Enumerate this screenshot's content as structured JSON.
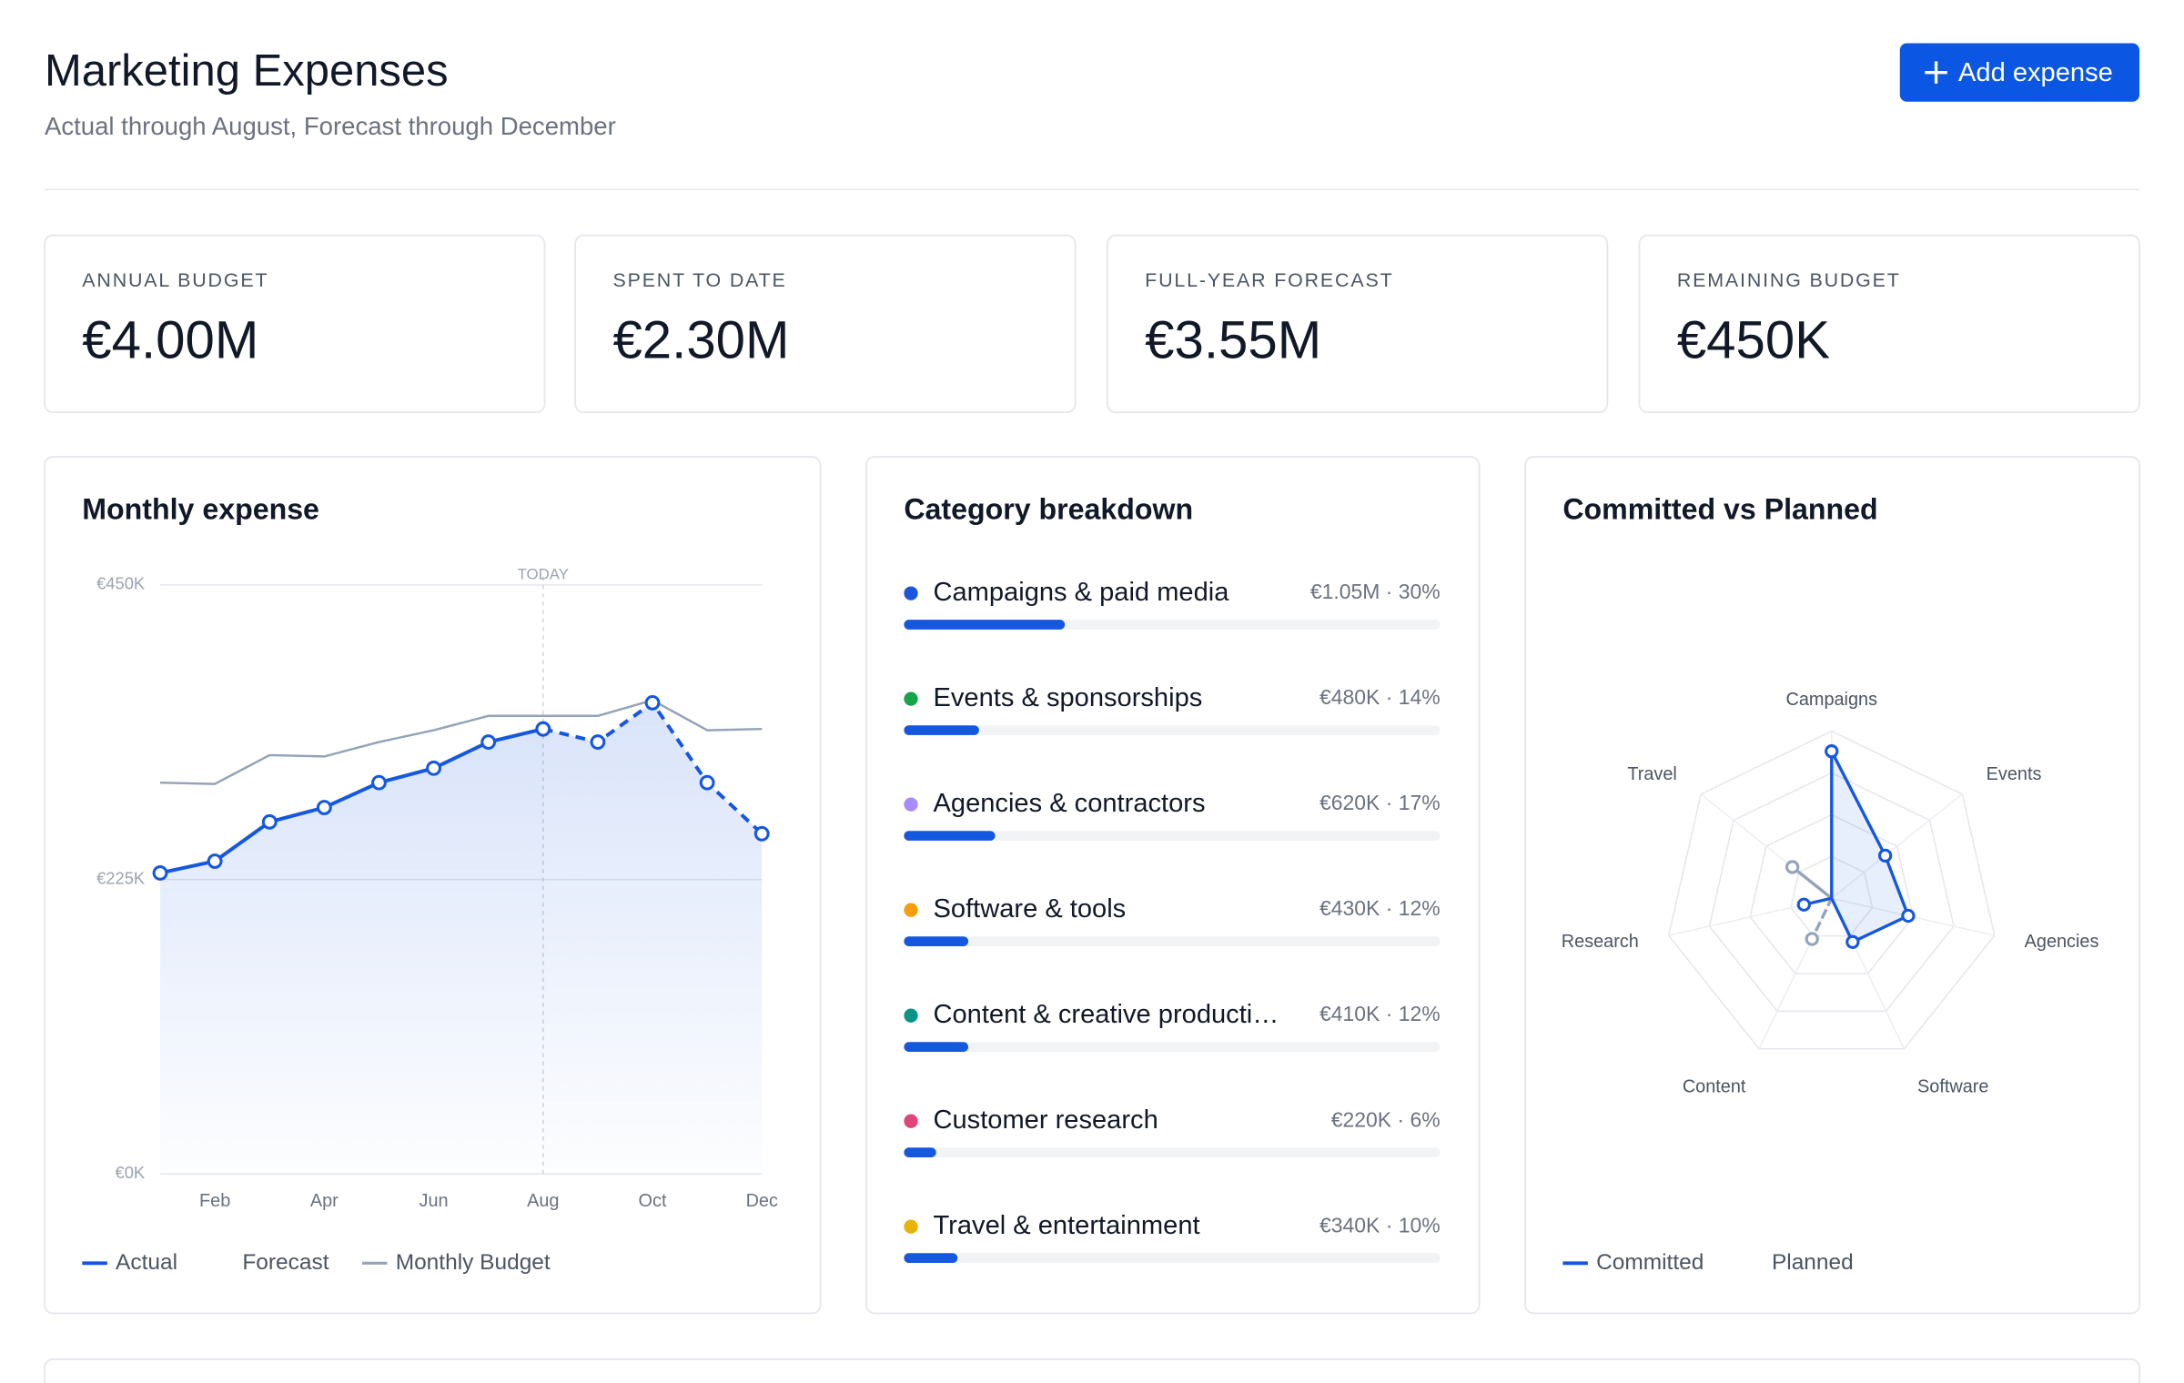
{
  "header": {
    "title": "Marketing Expenses",
    "subtitle": "Actual through August, Forecast through December",
    "action": "Add expense"
  },
  "kpis": [
    {
      "label": "ANNUAL BUDGET",
      "value": "€4.00M"
    },
    {
      "label": "SPENT TO DATE",
      "value": "€2.30M"
    },
    {
      "label": "FULL-YEAR FORECAST",
      "value": "€3.55M"
    },
    {
      "label": "REMAINING BUDGET",
      "value": "€450K"
    }
  ],
  "monthly_expense": {
    "type": "line",
    "title": "Monthly expense",
    "categories": [
      null,
      "Feb",
      null,
      "Apr",
      null,
      "Jun",
      null,
      "Aug",
      null,
      "Oct",
      null,
      "Dec"
    ],
    "ylim": [
      0,
      450
    ],
    "yticks": [
      {
        "value": 0,
        "label": "€0K"
      },
      {
        "value": 225,
        "label": "€225K"
      },
      {
        "value": 450,
        "label": "€450K"
      }
    ],
    "grid": true,
    "today": {
      "label": "TODAY",
      "category": "Aug"
    },
    "series": [
      {
        "name": "Actual",
        "color": "#1657e0",
        "style": "solid",
        "values": [
          230,
          239,
          269,
          280,
          299,
          310,
          330,
          340,
          null,
          null,
          null,
          null
        ]
      },
      {
        "name": "Forecast",
        "color": "#1657e0",
        "style": "dashed",
        "values": [
          null,
          null,
          null,
          null,
          null,
          null,
          null,
          340,
          330,
          360,
          299,
          260
        ]
      },
      {
        "name": "Monthly Budget",
        "color": "#94a3b8",
        "style": "thin",
        "values": [
          299,
          298,
          320,
          319,
          330,
          339,
          350,
          350,
          350,
          362,
          339,
          340
        ]
      }
    ]
  },
  "category_breakdown": {
    "type": "bar",
    "title": "Category breakdown",
    "bar_color": "#1657e0",
    "xlim": [
      0,
      100
    ],
    "categories": [
      "Campaigns & paid media",
      "Events & sponsorships",
      "Agencies & contractors",
      "Software & tools",
      "Content & creative producti…",
      "Customer research",
      "Travel & entertainment"
    ],
    "colors": [
      "#1a56db",
      "#16a34a",
      "#a78bfa",
      "#f59e0b",
      "#0d9488",
      "#e0457b",
      "#eab308"
    ],
    "values": [
      30,
      14,
      17,
      12,
      12,
      6,
      10
    ],
    "value_labels": [
      "€1.05M · 30%",
      "€480K · 14%",
      "€620K · 17%",
      "€430K · 12%",
      "€410K · 12%",
      "€220K · 6%",
      "€340K · 10%"
    ]
  },
  "committed_vs_planned": {
    "type": "radar",
    "title": "Committed vs Planned",
    "categories": [
      "Campaigns",
      "Events",
      "Agencies",
      "Software",
      "Content",
      "Research",
      "Travel"
    ],
    "rlim": [
      0,
      100
    ],
    "series": [
      {
        "name": "Committed",
        "color": "#1657e0",
        "style": "solid",
        "values": [
          88,
          41,
          47,
          29,
          0,
          17,
          0
        ]
      },
      {
        "name": "Planned",
        "color": "#94a3b8",
        "style": "dashed",
        "values": [
          0,
          0,
          0,
          0,
          27,
          0,
          30
        ]
      }
    ]
  }
}
